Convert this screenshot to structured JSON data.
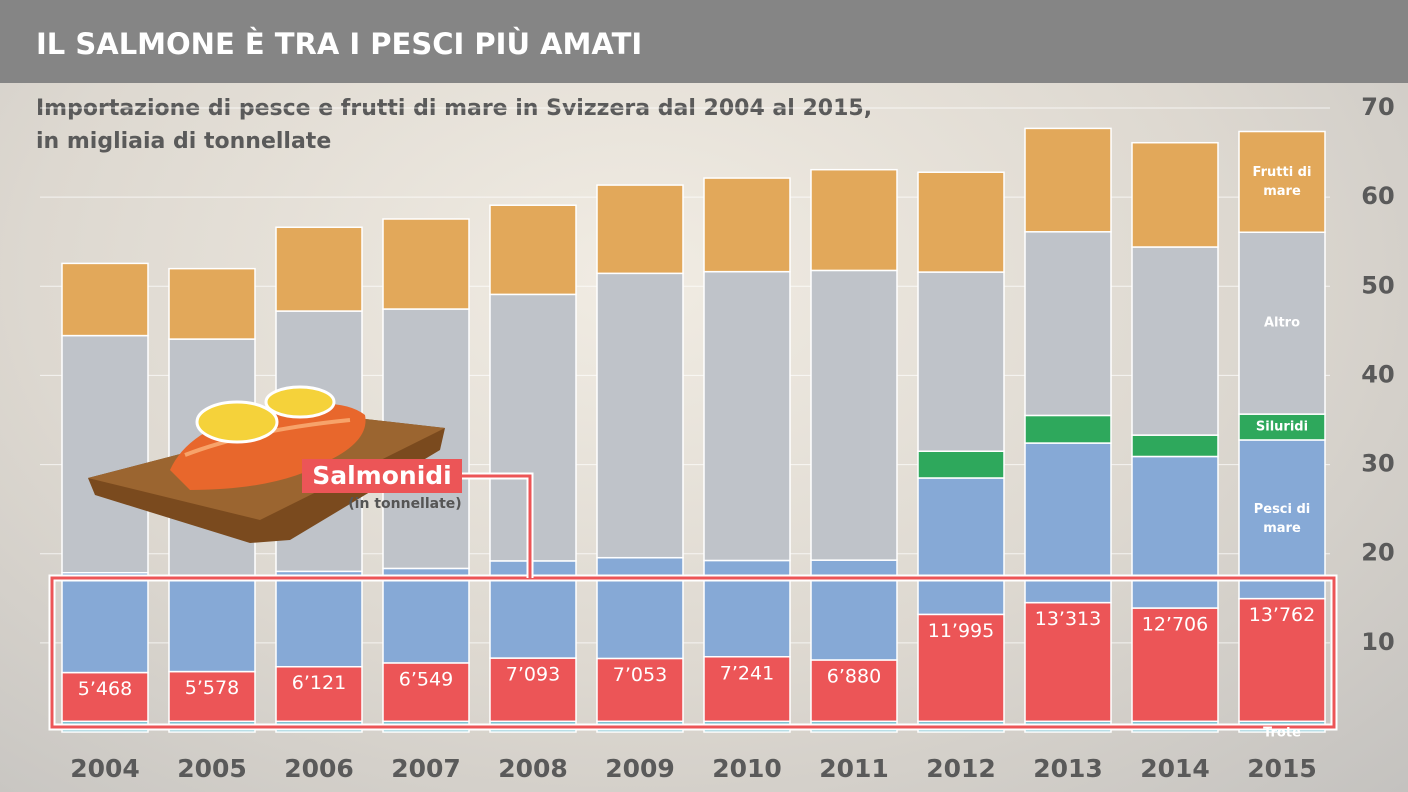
{
  "chart_data": {
    "type": "stacked_bar",
    "title": "IL SALMONE È TRA I PESCI PIÙ AMATI",
    "subtitle": [
      "Importazione di pesce e frutti di mare in Svizzera dal 2004 al 2015,",
      "in migliaia di tonnellate"
    ],
    "annotation": "(in tonnellate)",
    "categories": [
      "2004",
      "2005",
      "2006",
      "2007",
      "2008",
      "2009",
      "2010",
      "2011",
      "2012",
      "2013",
      "2014",
      "2015"
    ],
    "series": [
      {
        "name": "Trote",
        "color": "#72bccc",
        "values": [
          1.2,
          1.2,
          1.2,
          1.2,
          1.2,
          1.2,
          1.2,
          1.2,
          1.2,
          1.2,
          1.2,
          1.2
        ]
      },
      {
        "name": "Salmonidi",
        "color": "#ec5557",
        "values": [
          5.468,
          5.578,
          6.121,
          6.549,
          7.093,
          7.053,
          7.241,
          6.88,
          11.995,
          13.313,
          12.706,
          13.762
        ],
        "value_labels": [
          "5’468",
          "5’578",
          "6’121",
          "6’549",
          "7’093",
          "7’053",
          "7’241",
          "6’880",
          "11’995",
          "13’313",
          "12’706",
          "13’762"
        ]
      },
      {
        "name": "Pesci di mare",
        "color": "#86a9d6",
        "values": [
          11.2,
          10.7,
          10.7,
          10.6,
          10.9,
          11.3,
          10.8,
          11.2,
          15.3,
          17.9,
          17.0,
          17.8
        ]
      },
      {
        "name": "Siluridi",
        "color": "#2ea85c",
        "values": [
          0,
          0,
          0,
          0,
          0,
          0,
          0,
          0,
          3.0,
          3.1,
          2.4,
          2.9
        ]
      },
      {
        "name": "Altro",
        "color": "#bfc3c9",
        "values": [
          26.6,
          26.6,
          29.2,
          29.1,
          29.9,
          31.9,
          32.4,
          32.5,
          20.1,
          20.6,
          21.1,
          20.4
        ]
      },
      {
        "name": "Frutti di mare",
        "color": "#e2a85a",
        "values": [
          8.1,
          7.9,
          9.4,
          10.1,
          10.0,
          9.9,
          10.5,
          11.3,
          11.2,
          11.6,
          11.7,
          11.3
        ]
      }
    ],
    "ylim": [
      0,
      70
    ],
    "yticks": [
      10,
      20,
      30,
      40,
      50,
      60,
      70
    ],
    "grid": true
  }
}
